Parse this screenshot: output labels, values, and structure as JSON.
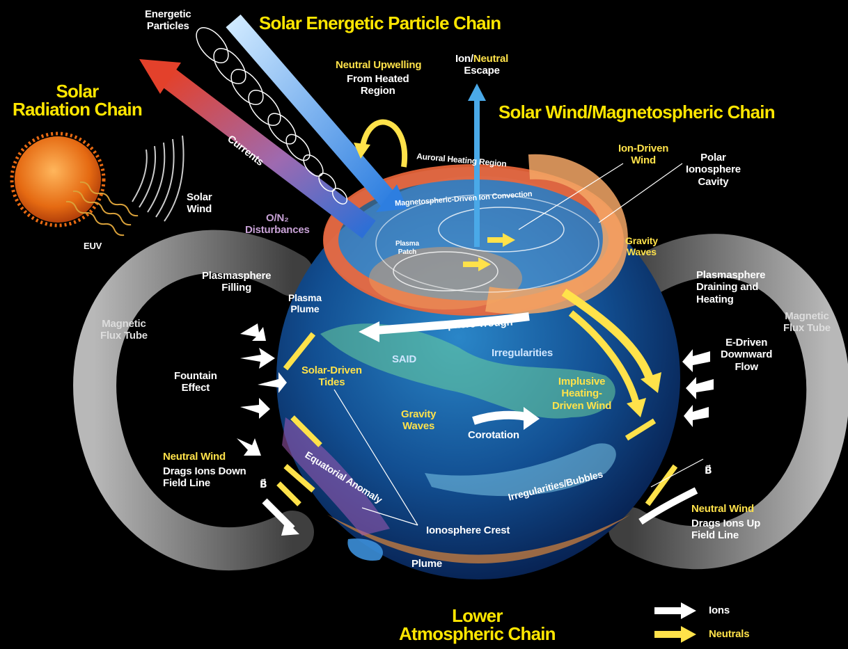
{
  "chains": {
    "solar_energetic_particle": "Solar Energetic Particle Chain",
    "solar_radiation": "Solar\nRadiation Chain",
    "solar_wind_magnetospheric": "Solar Wind/Magnetospheric Chain",
    "lower_atmospheric": "Lower\nAtmospheric Chain"
  },
  "labels": {
    "energetic_particles": "Energetic\nParticles",
    "currents": "Currents",
    "solar_wind": "Solar\nWind",
    "euv": "EUV",
    "neutral_upwelling": "Neutral Upwelling",
    "from_heated_region": "From Heated\nRegion",
    "ion_neutral_escape_ion": "Ion/",
    "ion_neutral_escape_neutral": "Neutral",
    "ion_neutral_escape_escape": "Escape",
    "auroral_heating_region": "Auroral Heating Region",
    "magnetospheric_convection": "Magnetospheric-Driven Ion Convection",
    "ion_driven_wind": "Ion-Driven\nWind",
    "polar_ionosphere_cavity": "Polar\nIonosphere\nCavity",
    "o_n2_disturbances": "O/N₂\nDisturbances",
    "plasma_patch": "Plasma\nPatch",
    "gravity_waves_top": "Gravity\nWaves",
    "plasmasphere_filling": "Plasmasphere\nFilling",
    "plasmasphere_draining": "Plasmasphere\nDraining and\nHeating",
    "plasma_plume": "Plasma\nPlume",
    "ionosphere_trough": "Ionosphere Trough",
    "magnetic_flux_tube_left": "Magnetic\nFlux Tube",
    "magnetic_flux_tube_right": "Magnetic\nFlux Tube",
    "said": "SAID",
    "irregularities": "Irregularities",
    "e_driven_flow": "E-Driven\nDownward\nFlow",
    "fountain_effect": "Fountain\nEffect",
    "solar_driven_tides": "Solar-Driven\nTides",
    "implusive_heating": "Implusive\nHeating-\nDriven Wind",
    "gravity_waves_mid": "Gravity\nWaves",
    "corotation": "Corotation",
    "neutral_wind_down_title": "Neutral Wind",
    "neutral_wind_down_rest": "Drags Ions Down\nField Line",
    "equatorial_anomaly": "Equatorial Anomaly",
    "irregularities_bubbles": "Irregularities/Bubbles",
    "b_vector_left": "B⃗",
    "b_vector_right": "B⃗",
    "neutral_wind_up_title": "Neutral Wind",
    "neutral_wind_up_rest": "Drags Ions Up\nField Line",
    "ionosphere_crest": "Ionosphere Crest",
    "plume": "Plume"
  },
  "legend": {
    "ions": "Ions",
    "neutrals": "Neutrals",
    "ions_color": "#ffffff",
    "neutrals_color": "#ffe24a"
  },
  "colors": {
    "chain_title": "#ffe600",
    "neutral_arrows": "#ffe24a",
    "ion_arrows": "#ffffff",
    "background": "#000000"
  }
}
